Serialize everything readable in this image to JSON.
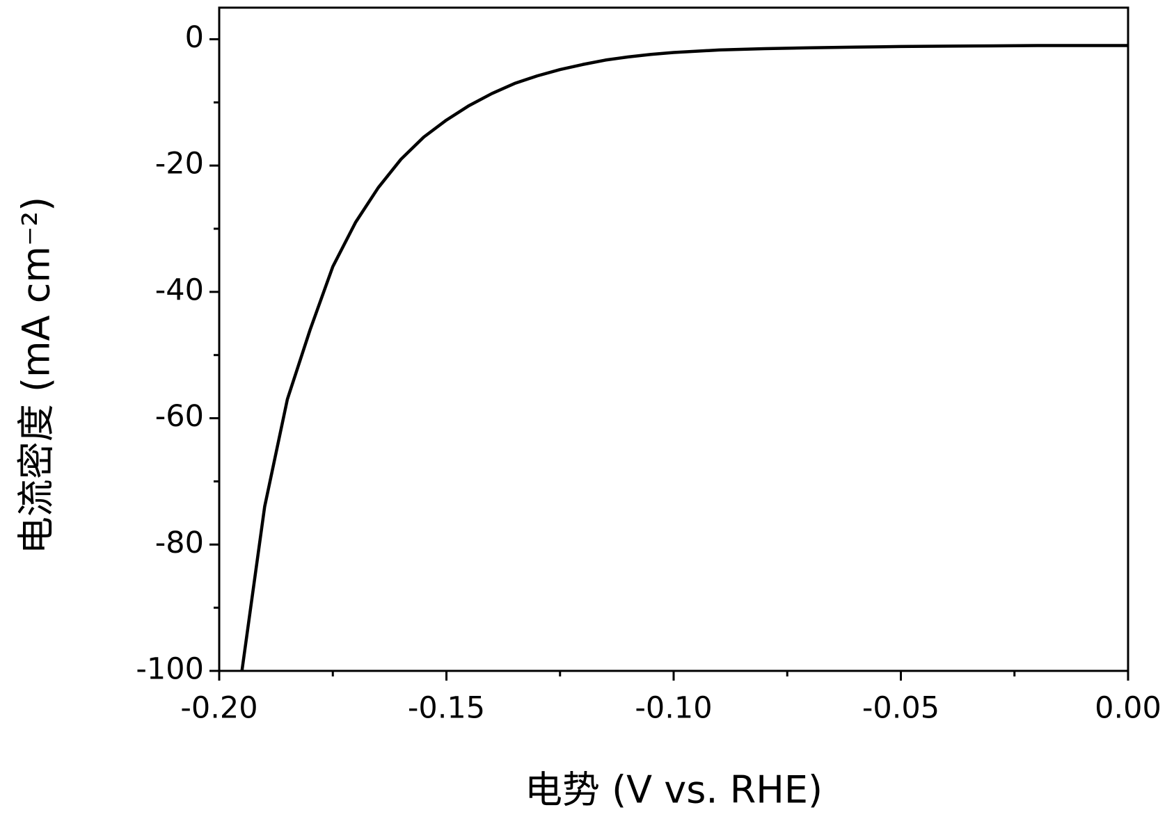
{
  "chart_data": {
    "type": "line",
    "xlabel": "电势 (V vs. RHE)",
    "ylabel": "电流密度 (mA cm⁻²)",
    "x": [
      -0.195,
      -0.19,
      -0.185,
      -0.18,
      -0.175,
      -0.17,
      -0.165,
      -0.16,
      -0.155,
      -0.15,
      -0.145,
      -0.14,
      -0.135,
      -0.13,
      -0.125,
      -0.12,
      -0.115,
      -0.11,
      -0.105,
      -0.1,
      -0.09,
      -0.08,
      -0.07,
      -0.06,
      -0.05,
      -0.04,
      -0.03,
      -0.02,
      -0.01,
      0
    ],
    "values": [
      -100,
      -74,
      -57,
      -46,
      -36,
      -29,
      -23.5,
      -19,
      -15.5,
      -12.8,
      -10.5,
      -8.6,
      -7,
      -5.8,
      -4.8,
      -4,
      -3.3,
      -2.8,
      -2.4,
      -2.1,
      -1.7,
      -1.5,
      -1.35,
      -1.25,
      -1.15,
      -1.1,
      -1.05,
      -1.0,
      -1.0,
      -1.0
    ],
    "color": "#000000",
    "xlim": [
      -0.2,
      0
    ],
    "ylim": [
      -100,
      5
    ],
    "xticks": [
      {
        "value": -0.2,
        "label": "-0.20"
      },
      {
        "value": -0.15,
        "label": "-0.15"
      },
      {
        "value": -0.1,
        "label": "-0.10"
      },
      {
        "value": -0.05,
        "label": "-0.05"
      },
      {
        "value": 0,
        "label": "0.00"
      }
    ],
    "yticks": [
      -100,
      -80,
      -60,
      -40,
      -20,
      0
    ],
    "grid": false
  }
}
